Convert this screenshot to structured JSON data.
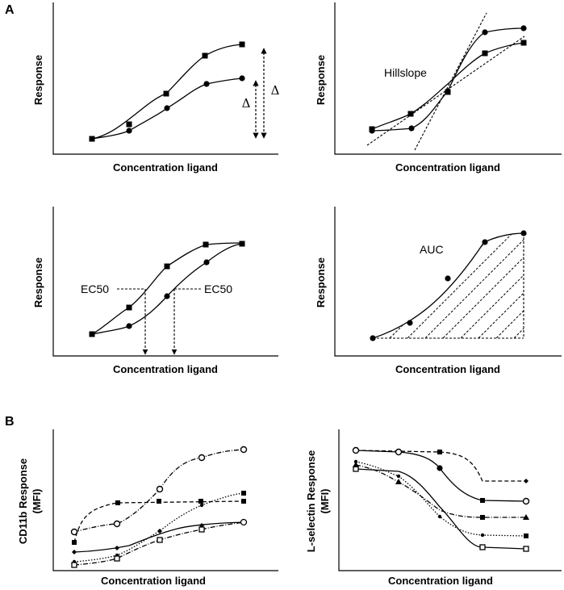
{
  "panel_labels": {
    "a": "A",
    "b": "B"
  },
  "panels": {
    "p1": {
      "xlabel": "Concentration ligand",
      "ylabel": "Response",
      "annotations": {
        "delta_inner": "Δ",
        "delta_outer": "Δ"
      }
    },
    "p2": {
      "xlabel": "Concentration ligand",
      "ylabel": "Response",
      "annotations": {
        "hillslope": "Hillslope"
      }
    },
    "p3": {
      "xlabel": "Concentration ligand",
      "ylabel": "Response",
      "annotations": {
        "ec50_left": "EC50",
        "ec50_right": "EC50"
      }
    },
    "p4": {
      "xlabel": "Concentration ligand",
      "ylabel": "Response",
      "annotations": {
        "auc": "AUC"
      }
    },
    "p5": {
      "xlabel": "Concentration ligand",
      "ylabel_line1": "CD11b Response",
      "ylabel_line2": "(MFI)"
    },
    "p6": {
      "xlabel": "Concentration ligand",
      "ylabel_line1": "L-selectin Response",
      "ylabel_line2": "(MFI)"
    }
  }
}
